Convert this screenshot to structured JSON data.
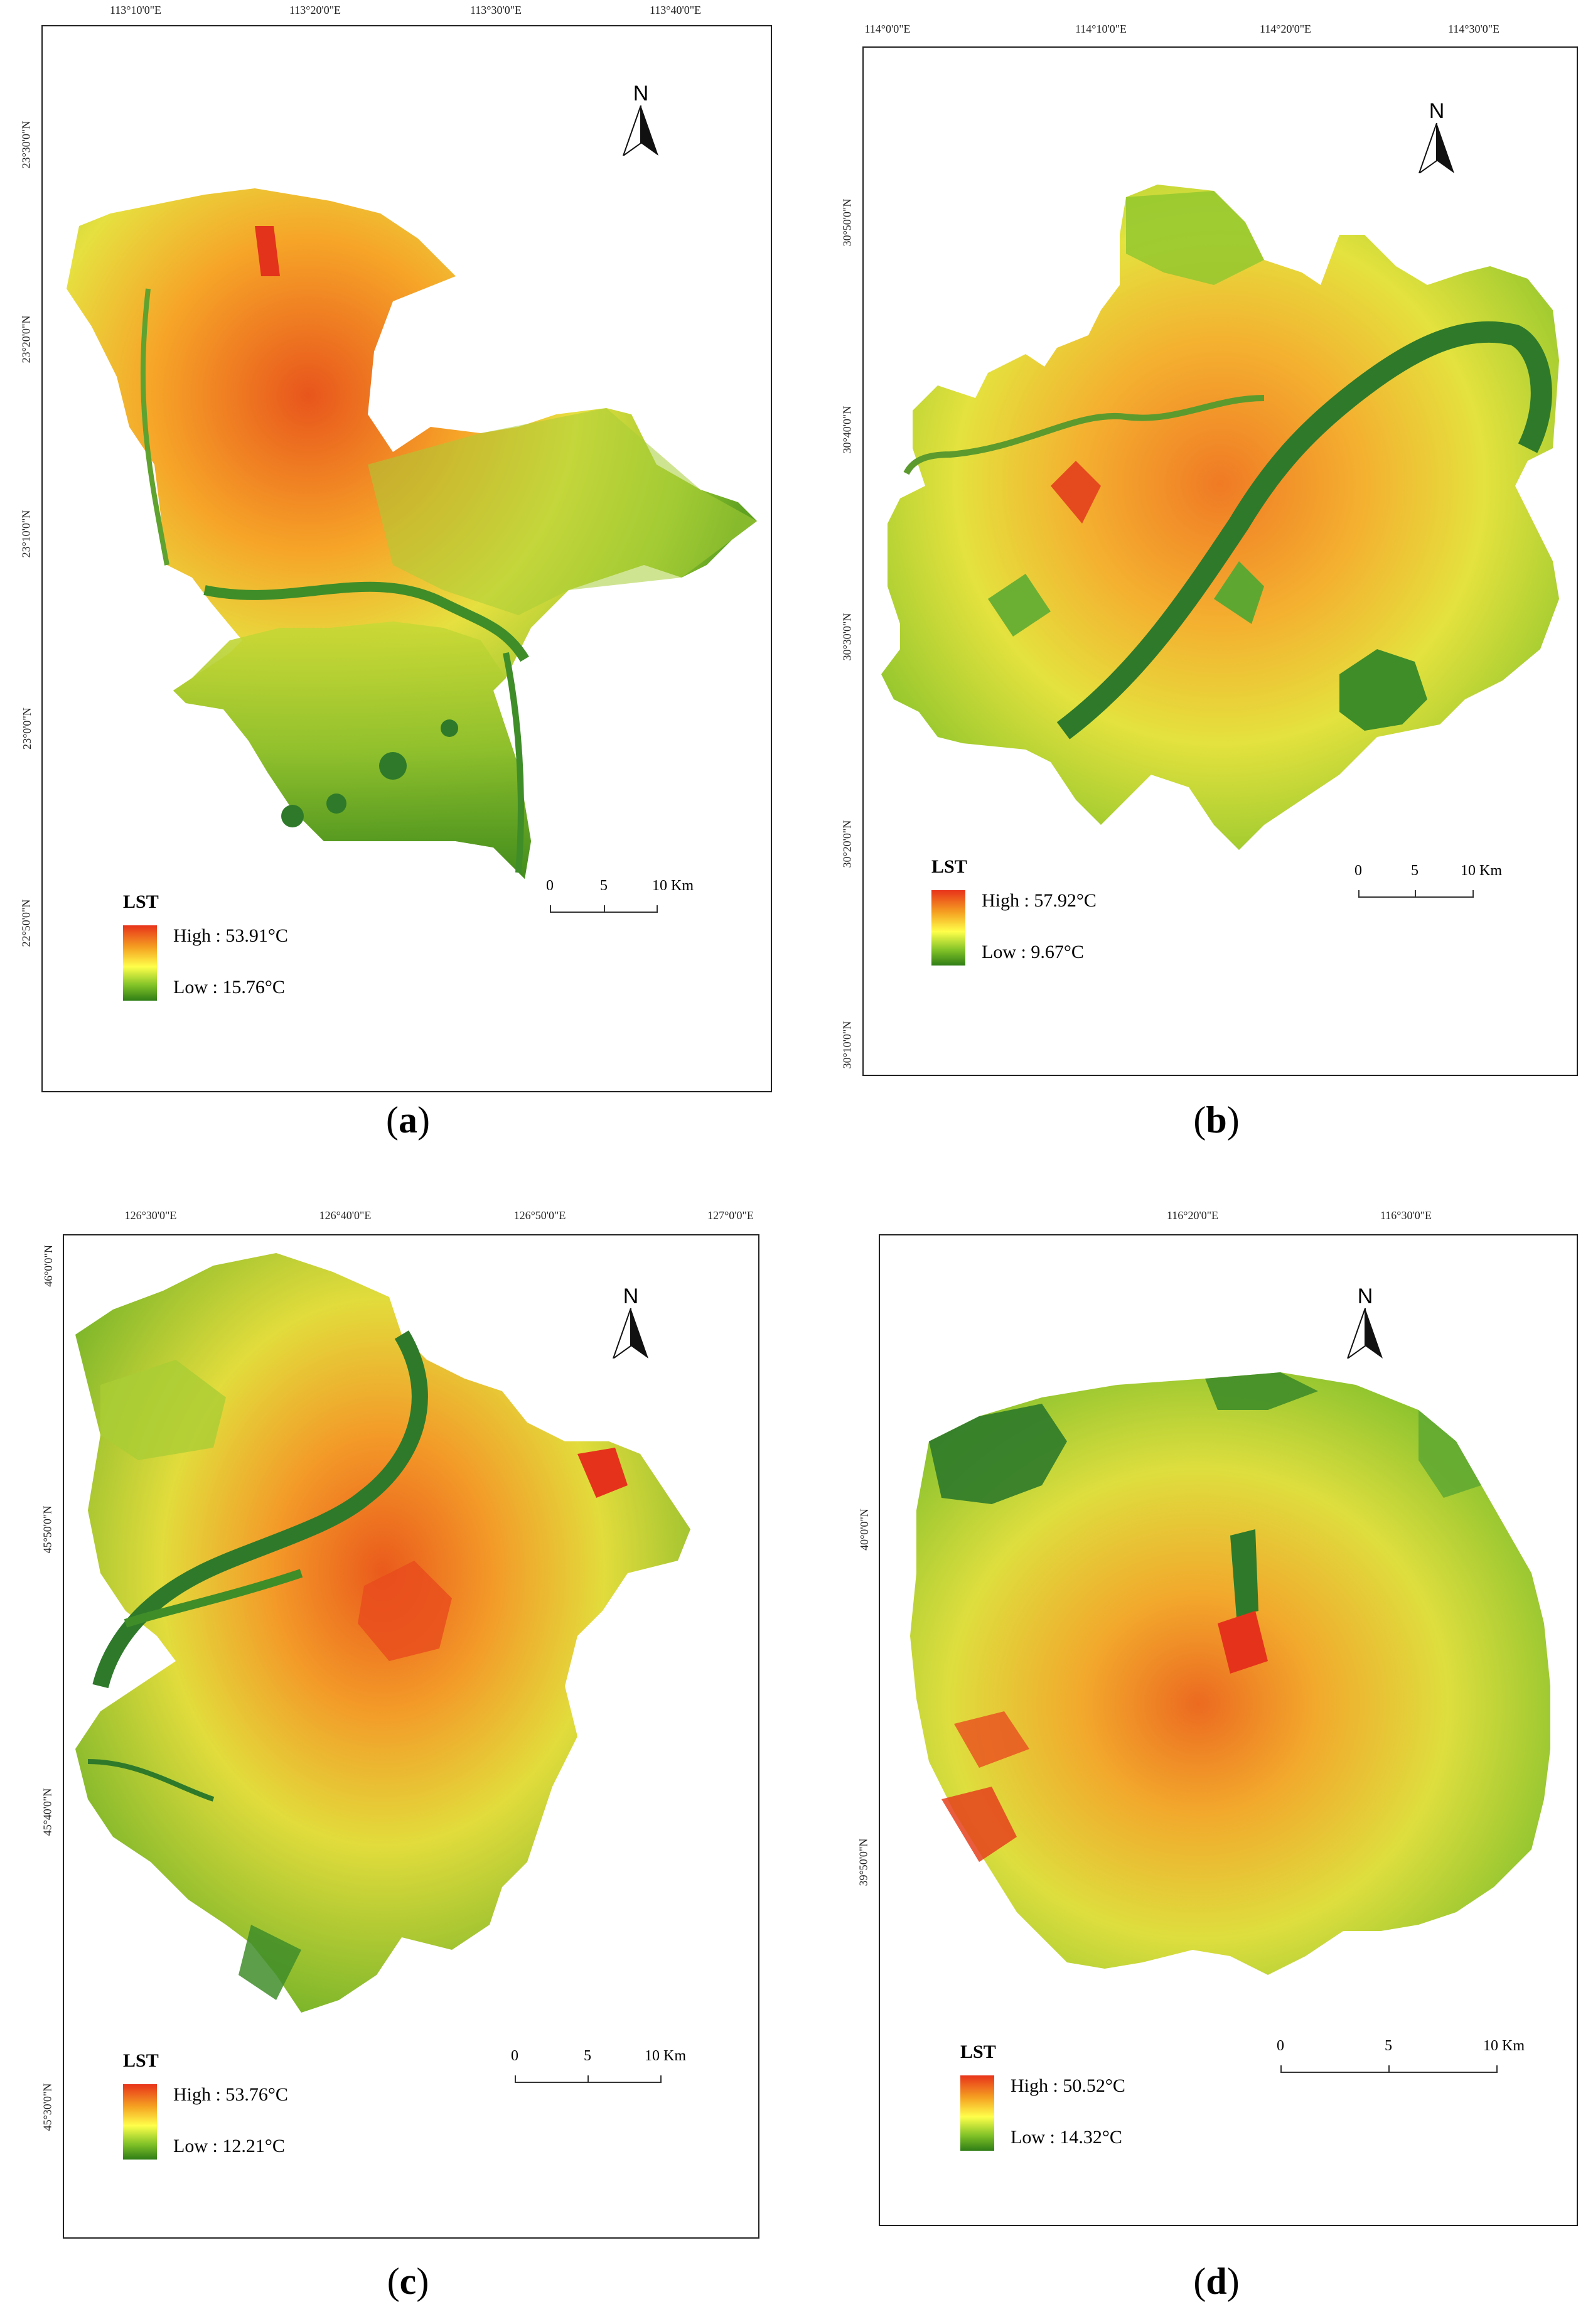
{
  "panels": [
    {
      "id": "a",
      "caption_open": "(",
      "caption_letter": "a",
      "caption_close": ")",
      "top_ticks": [
        "113°10'0\"E",
        "113°20'0\"E",
        "113°30'0\"E",
        "113°40'0\"E"
      ],
      "side_ticks": [
        "23°30'0\"N",
        "23°20'0\"N",
        "23°10'0\"N",
        "23°0'0\"N",
        "22°50'0\"N"
      ],
      "north": "N",
      "legend": {
        "title": "LST",
        "high": "High : 53.91°C",
        "low": "Low : 15.76°C"
      },
      "scale": [
        "0",
        "5",
        "10 Km"
      ]
    },
    {
      "id": "b",
      "caption_open": "(",
      "caption_letter": "b",
      "caption_close": ")",
      "top_ticks": [
        "114°0'0\"E",
        "114°10'0\"E",
        "114°20'0\"E",
        "114°30'0\"E"
      ],
      "side_ticks": [
        "30°50'0\"N",
        "30°40'0\"N",
        "30°30'0\"N",
        "30°20'0\"N",
        "30°10'0\"N"
      ],
      "north": "N",
      "legend": {
        "title": "LST",
        "high": "High : 57.92°C",
        "low": "Low : 9.67°C"
      },
      "scale": [
        "0",
        "5",
        "10 Km"
      ]
    },
    {
      "id": "c",
      "caption_open": "(",
      "caption_letter": "c",
      "caption_close": ")",
      "top_ticks": [
        "126°30'0\"E",
        "126°40'0\"E",
        "126°50'0\"E",
        "127°0'0\"E"
      ],
      "side_ticks": [
        "46°0'0\"N",
        "45°50'0\"N",
        "45°40'0\"N",
        "45°30'0\"N"
      ],
      "north": "N",
      "legend": {
        "title": "LST",
        "high": "High : 53.76°C",
        "low": "Low : 12.21°C"
      },
      "scale": [
        "0",
        "5",
        "10 Km"
      ]
    },
    {
      "id": "d",
      "caption_open": "(",
      "caption_letter": "d",
      "caption_close": ")",
      "top_ticks": [
        "116°20'0\"E",
        "116°30'0\"E"
      ],
      "side_ticks": [
        "40°0'0\"N",
        "39°50'0\"N"
      ],
      "north": "N",
      "legend": {
        "title": "LST",
        "high": "High : 50.52°C",
        "low": "Low : 14.32°C"
      },
      "scale": [
        "0",
        "5",
        "10 Km"
      ]
    }
  ],
  "colors": {
    "high": "#e8331a",
    "mid": "#ffff4a",
    "low": "#2f7d16",
    "water": "#2e7a2a"
  }
}
